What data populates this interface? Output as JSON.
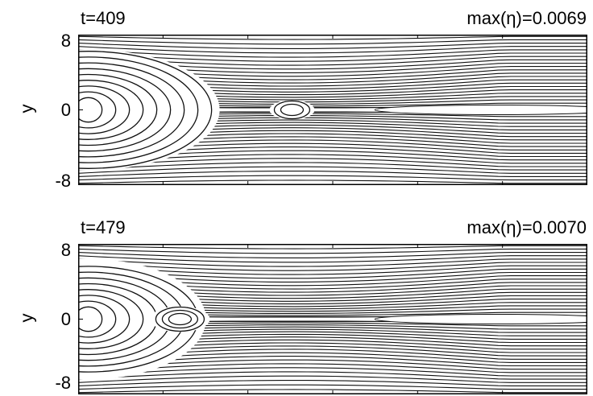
{
  "chart_data": [
    {
      "type": "contour",
      "time_label": "t=409",
      "max_label_prefix": "max(",
      "max_label_symbol": "η",
      "max_label_suffix": ")=0.0069",
      "ylabel": "y",
      "yticks": [
        "8",
        "0",
        "-8"
      ],
      "ylim": [
        -8,
        8
      ],
      "islands": [
        {
          "kind": "nested",
          "x": 0.02,
          "y": 0,
          "rings": 9
        },
        {
          "kind": "o-point",
          "x": 0.42,
          "y": 0,
          "rings": 2
        }
      ]
    },
    {
      "type": "contour",
      "time_label": "t=479",
      "max_label_prefix": "max(",
      "max_label_symbol": "η",
      "max_label_suffix": ")=0.0070",
      "ylabel": "y",
      "yticks": [
        "8",
        "0",
        "-8"
      ],
      "ylim": [
        -8,
        8
      ],
      "islands": [
        {
          "kind": "nested",
          "x": 0.02,
          "y": 0,
          "rings": 8
        },
        {
          "kind": "o-point",
          "x": 0.2,
          "y": 0,
          "rings": 3
        }
      ]
    }
  ]
}
